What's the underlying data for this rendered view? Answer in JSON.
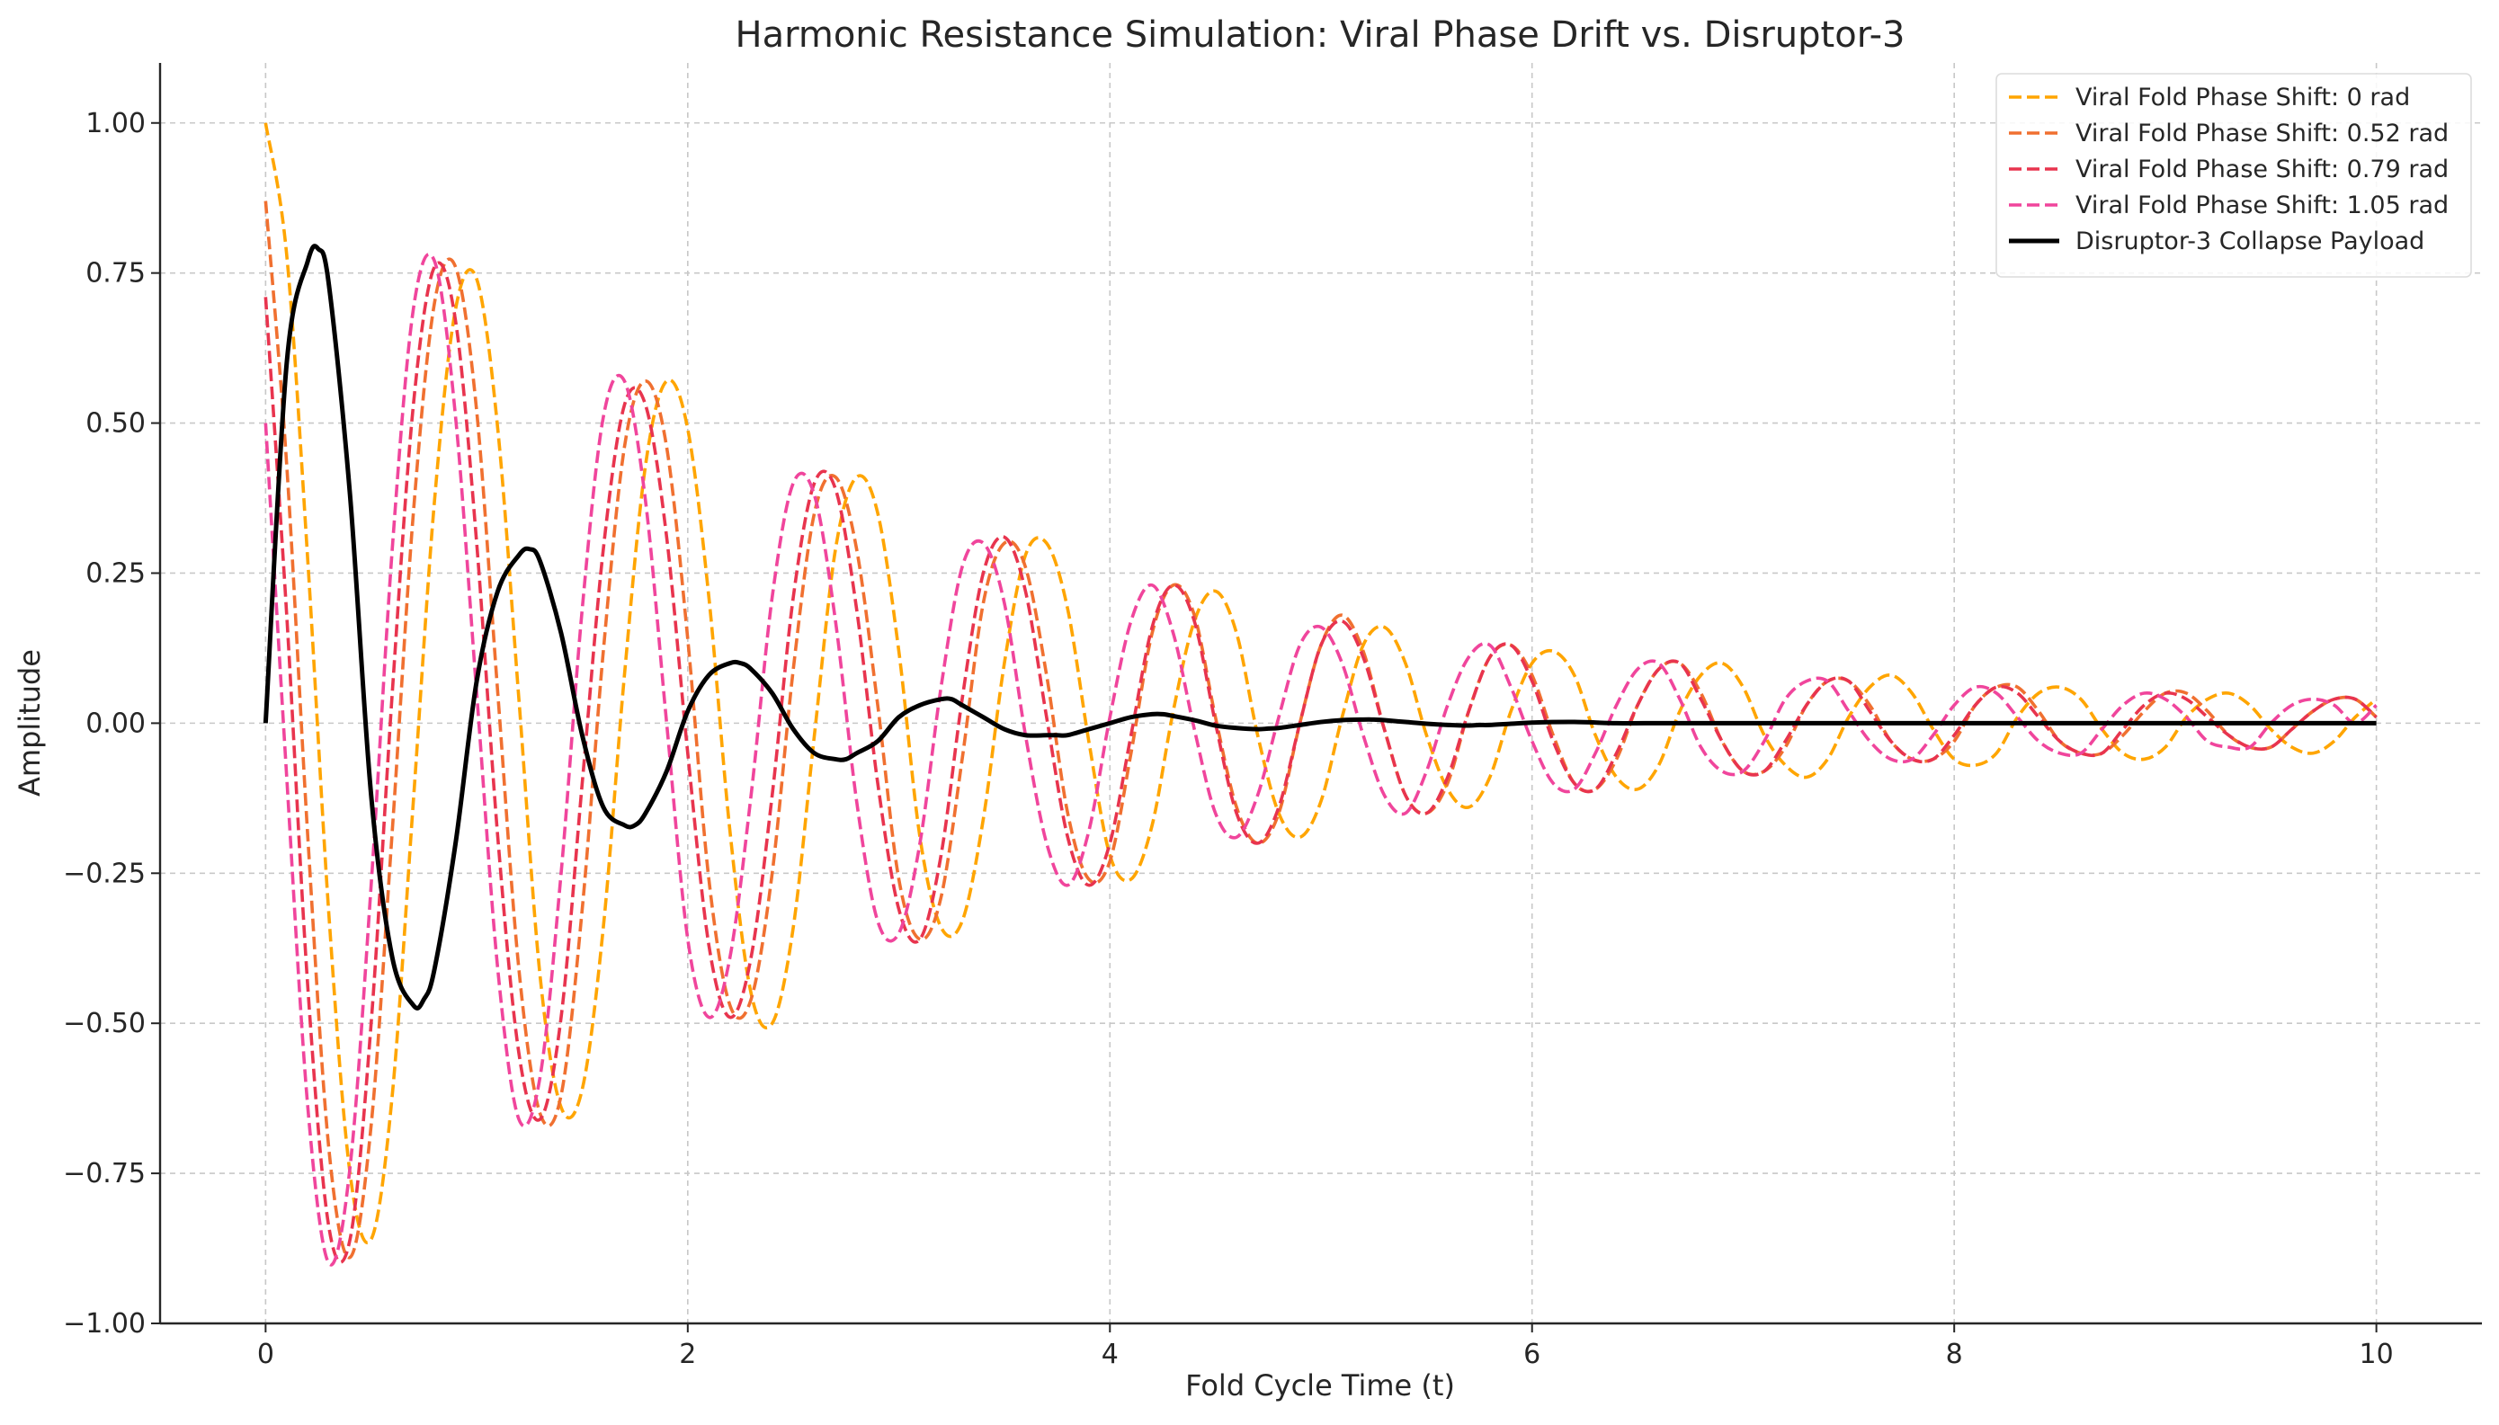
{
  "chart_data": {
    "type": "line",
    "title": "Harmonic Resistance Simulation: Viral Phase Drift vs. Disruptor-3",
    "xlabel": "Fold Cycle Time (t)",
    "ylabel": "Amplitude",
    "xlim": [
      -0.5,
      10.5
    ],
    "ylim": [
      -1.0,
      1.1
    ],
    "xticks": [
      0,
      2,
      4,
      6,
      8,
      10
    ],
    "xtick_labels": [
      "0",
      "2",
      "4",
      "6",
      "8",
      "10"
    ],
    "yticks": [
      -1.0,
      -0.75,
      -0.5,
      -0.25,
      0.0,
      0.25,
      0.5,
      0.75,
      1.0
    ],
    "ytick_labels": [
      "−1.00",
      "−0.75",
      "−0.50",
      "−0.25",
      "0.00",
      "0.25",
      "0.50",
      "0.75",
      "1.00"
    ],
    "grid": true,
    "legend_position": "top-right",
    "series": [
      {
        "name": "Viral Fold Phase Shift: 0 rad",
        "color": "#FFA500",
        "style": "dashed",
        "x": [
          0.0,
          0.1,
          0.2,
          0.3,
          0.4,
          0.5,
          0.6,
          0.7,
          0.8,
          0.9,
          1.0,
          1.1,
          1.2,
          1.3,
          1.4,
          1.5,
          1.6,
          1.7,
          1.8,
          1.9,
          2.0,
          2.1,
          2.2,
          2.3,
          2.4,
          2.5,
          2.6,
          2.7,
          2.8,
          2.9,
          3.0,
          3.1,
          3.2,
          3.3,
          3.4,
          3.5,
          3.6,
          3.7,
          3.8,
          3.9,
          4.0,
          4.1,
          4.2,
          4.3,
          4.4,
          4.5,
          4.6,
          4.7,
          4.8,
          4.9,
          5.0,
          5.1,
          5.2,
          5.3,
          5.4,
          5.5,
          5.6,
          5.7,
          5.8,
          5.9,
          6.0,
          6.1,
          6.2,
          6.3,
          6.4,
          6.5,
          6.6,
          6.7,
          6.8,
          6.9,
          7.0,
          7.1,
          7.2,
          7.3,
          7.4,
          7.5,
          7.6,
          7.7,
          7.8,
          7.9,
          8.0,
          8.1,
          8.2,
          8.3,
          8.4,
          8.5,
          8.6,
          8.7,
          8.8,
          8.9,
          9.0,
          9.1,
          9.2,
          9.3,
          9.4,
          9.5,
          9.6,
          9.7,
          9.8,
          9.9,
          10.0
        ],
        "y": [
          1.0,
          0.78,
          0.27,
          -0.32,
          -0.75,
          -0.86,
          -0.62,
          -0.13,
          0.37,
          0.69,
          0.74,
          0.49,
          0.04,
          -0.42,
          -0.64,
          -0.61,
          -0.34,
          0.08,
          0.43,
          0.57,
          0.49,
          0.21,
          -0.18,
          -0.45,
          -0.5,
          -0.34,
          -0.02,
          0.29,
          0.41,
          0.35,
          0.12,
          -0.19,
          -0.34,
          -0.33,
          -0.16,
          0.1,
          0.28,
          0.3,
          0.19,
          -0.03,
          -0.22,
          -0.26,
          -0.17,
          0.02,
          0.17,
          0.22,
          0.15,
          -0.02,
          -0.15,
          -0.19,
          -0.13,
          0.01,
          0.13,
          0.16,
          0.1,
          -0.02,
          -0.11,
          -0.14,
          -0.09,
          0.02,
          0.1,
          0.12,
          0.08,
          -0.02,
          -0.09,
          -0.11,
          -0.07,
          0.02,
          0.08,
          0.1,
          0.06,
          -0.02,
          -0.07,
          -0.09,
          -0.06,
          0.01,
          0.06,
          0.08,
          0.05,
          -0.01,
          -0.06,
          -0.07,
          -0.05,
          0.01,
          0.05,
          0.06,
          0.04,
          -0.01,
          -0.05,
          -0.06,
          -0.04,
          0.01,
          0.04,
          0.05,
          0.03,
          -0.01,
          -0.04,
          -0.05,
          -0.03,
          0.01,
          0.04
        ]
      },
      {
        "name": "Viral Fold Phase Shift: 0.52 rad",
        "color": "#F07030",
        "style": "dashed",
        "x": [
          0.0,
          0.1,
          0.2,
          0.3,
          0.4,
          0.5,
          0.6,
          0.7,
          0.8,
          0.9,
          1.0,
          1.1,
          1.2,
          1.3,
          1.4,
          1.5,
          1.6,
          1.7,
          1.8,
          1.9,
          2.0,
          2.1,
          2.2,
          2.3,
          2.4,
          2.5,
          2.6,
          2.7,
          2.8,
          2.9,
          3.0,
          3.1,
          3.2,
          3.3,
          3.4,
          3.5,
          3.6,
          3.7,
          3.8,
          3.9,
          4.0,
          4.1,
          4.2,
          4.3,
          4.4,
          4.5,
          4.6,
          4.7,
          4.8,
          4.9,
          5.0,
          5.1,
          5.2,
          5.3,
          5.4,
          5.5,
          5.6,
          5.7,
          5.8,
          5.9,
          6.0,
          6.1,
          6.2,
          6.3,
          6.4,
          6.5,
          6.6,
          6.7,
          6.8,
          6.9,
          7.0,
          7.1,
          7.2,
          7.3,
          7.4,
          7.5,
          7.6,
          7.7,
          7.8,
          7.9,
          8.0,
          8.1,
          8.2,
          8.3,
          8.4,
          8.5,
          8.6,
          8.7,
          8.8,
          8.9,
          9.0,
          9.1,
          9.2,
          9.3,
          9.4,
          9.5,
          9.6,
          9.7,
          9.8,
          9.9,
          10.0
        ],
        "y": [
          0.87,
          0.43,
          -0.19,
          -0.71,
          -0.89,
          -0.67,
          -0.18,
          0.35,
          0.7,
          0.76,
          0.52,
          0.05,
          -0.41,
          -0.65,
          -0.62,
          -0.31,
          0.12,
          0.46,
          0.57,
          0.46,
          0.14,
          -0.26,
          -0.47,
          -0.46,
          -0.25,
          0.09,
          0.35,
          0.41,
          0.29,
          0.03,
          -0.26,
          -0.36,
          -0.29,
          -0.06,
          0.2,
          0.3,
          0.26,
          0.08,
          -0.15,
          -0.26,
          -0.23,
          -0.05,
          0.15,
          0.23,
          0.18,
          0.01,
          -0.14,
          -0.2,
          -0.15,
          0.0,
          0.13,
          0.18,
          0.12,
          -0.01,
          -0.12,
          -0.15,
          -0.1,
          0.02,
          0.11,
          0.13,
          0.08,
          -0.02,
          -0.1,
          -0.11,
          -0.06,
          0.03,
          0.09,
          0.1,
          0.05,
          -0.03,
          -0.08,
          -0.08,
          -0.04,
          0.03,
          0.07,
          0.07,
          0.03,
          -0.03,
          -0.06,
          -0.06,
          -0.03,
          0.03,
          0.06,
          0.06,
          0.02,
          -0.03,
          -0.05,
          -0.05,
          -0.02,
          0.02,
          0.05,
          0.05,
          0.02,
          -0.02,
          -0.04,
          -0.04,
          -0.01,
          0.02,
          0.04,
          0.04,
          0.01
        ]
      },
      {
        "name": "Viral Fold Phase Shift: 0.79 rad",
        "color": "#E8344E",
        "style": "dashed",
        "x": [
          0.0,
          0.1,
          0.2,
          0.3,
          0.4,
          0.5,
          0.6,
          0.7,
          0.8,
          0.9,
          1.0,
          1.1,
          1.2,
          1.3,
          1.4,
          1.5,
          1.6,
          1.7,
          1.8,
          1.9,
          2.0,
          2.1,
          2.2,
          2.3,
          2.4,
          2.5,
          2.6,
          2.7,
          2.8,
          2.9,
          3.0,
          3.1,
          3.2,
          3.3,
          3.4,
          3.5,
          3.6,
          3.7,
          3.8,
          3.9,
          4.0,
          4.1,
          4.2,
          4.3,
          4.4,
          4.5,
          4.6,
          4.7,
          4.8,
          4.9,
          5.0,
          5.1,
          5.2,
          5.3,
          5.4,
          5.5,
          5.6,
          5.7,
          5.8,
          5.9,
          6.0,
          6.1,
          6.2,
          6.3,
          6.4,
          6.5,
          6.6,
          6.7,
          6.8,
          6.9,
          7.0,
          7.1,
          7.2,
          7.3,
          7.4,
          7.5,
          7.6,
          7.7,
          7.8,
          7.9,
          8.0,
          8.1,
          8.2,
          8.3,
          8.4,
          8.5,
          8.6,
          8.7,
          8.8,
          8.9,
          9.0,
          9.1,
          9.2,
          9.3,
          9.4,
          9.5,
          9.6,
          9.7,
          9.8,
          9.9,
          10.0
        ],
        "y": [
          0.71,
          0.18,
          -0.44,
          -0.84,
          -0.86,
          -0.5,
          0.05,
          0.53,
          0.76,
          0.67,
          0.3,
          -0.19,
          -0.55,
          -0.66,
          -0.49,
          -0.1,
          0.29,
          0.53,
          0.53,
          0.31,
          -0.05,
          -0.37,
          -0.49,
          -0.39,
          -0.12,
          0.21,
          0.4,
          0.39,
          0.19,
          -0.1,
          -0.31,
          -0.36,
          -0.22,
          0.04,
          0.25,
          0.31,
          0.22,
          0.01,
          -0.19,
          -0.27,
          -0.2,
          -0.02,
          0.16,
          0.23,
          0.17,
          0.0,
          -0.15,
          -0.2,
          -0.14,
          0.0,
          0.13,
          0.17,
          0.11,
          -0.01,
          -0.12,
          -0.15,
          -0.09,
          0.02,
          0.11,
          0.13,
          0.07,
          -0.03,
          -0.1,
          -0.11,
          -0.05,
          0.03,
          0.09,
          0.1,
          0.04,
          -0.03,
          -0.08,
          -0.08,
          -0.03,
          0.03,
          0.07,
          0.07,
          0.02,
          -0.03,
          -0.06,
          -0.06,
          -0.02,
          0.03,
          0.06,
          0.05,
          0.01,
          -0.03,
          -0.05,
          -0.05,
          -0.01,
          0.03,
          0.05,
          0.04,
          0.01,
          -0.02,
          -0.04,
          -0.04,
          -0.01,
          0.02,
          0.04,
          0.04,
          0.01
        ]
      },
      {
        "name": "Viral Fold Phase Shift: 1.05 rad",
        "color": "#F0459C",
        "style": "dashed",
        "x": [
          0.0,
          0.1,
          0.2,
          0.3,
          0.4,
          0.5,
          0.6,
          0.7,
          0.8,
          0.9,
          1.0,
          1.1,
          1.2,
          1.3,
          1.4,
          1.5,
          1.6,
          1.7,
          1.8,
          1.9,
          2.0,
          2.1,
          2.2,
          2.3,
          2.4,
          2.5,
          2.6,
          2.7,
          2.8,
          2.9,
          3.0,
          3.1,
          3.2,
          3.3,
          3.4,
          3.5,
          3.6,
          3.7,
          3.8,
          3.9,
          4.0,
          4.1,
          4.2,
          4.3,
          4.4,
          4.5,
          4.6,
          4.7,
          4.8,
          4.9,
          5.0,
          5.1,
          5.2,
          5.3,
          5.4,
          5.5,
          5.6,
          5.7,
          5.8,
          5.9,
          6.0,
          6.1,
          6.2,
          6.3,
          6.4,
          6.5,
          6.6,
          6.7,
          6.8,
          6.9,
          7.0,
          7.1,
          7.2,
          7.3,
          7.4,
          7.5,
          7.6,
          7.7,
          7.8,
          7.9,
          8.0,
          8.1,
          8.2,
          8.3,
          8.4,
          8.5,
          8.6,
          8.7,
          8.8,
          8.9,
          9.0,
          9.1,
          9.2,
          9.3,
          9.4,
          9.5,
          9.6,
          9.7,
          9.8,
          9.9,
          10.0
        ],
        "y": [
          0.5,
          -0.09,
          -0.64,
          -0.9,
          -0.74,
          -0.27,
          0.29,
          0.69,
          0.77,
          0.51,
          0.05,
          -0.41,
          -0.66,
          -0.59,
          -0.25,
          0.19,
          0.51,
          0.57,
          0.37,
          0.0,
          -0.36,
          -0.49,
          -0.39,
          -0.12,
          0.21,
          0.4,
          0.38,
          0.17,
          -0.13,
          -0.33,
          -0.35,
          -0.2,
          0.06,
          0.26,
          0.3,
          0.2,
          -0.02,
          -0.2,
          -0.27,
          -0.18,
          0.01,
          0.17,
          0.23,
          0.15,
          -0.01,
          -0.15,
          -0.19,
          -0.12,
          0.01,
          0.13,
          0.16,
          0.1,
          -0.02,
          -0.12,
          -0.15,
          -0.08,
          0.03,
          0.11,
          0.13,
          0.06,
          -0.03,
          -0.1,
          -0.11,
          -0.05,
          0.03,
          0.09,
          0.1,
          0.04,
          -0.04,
          -0.08,
          -0.08,
          -0.03,
          0.04,
          0.07,
          0.07,
          0.02,
          -0.03,
          -0.06,
          -0.06,
          -0.02,
          0.03,
          0.06,
          0.05,
          0.01,
          -0.03,
          -0.05,
          -0.05,
          -0.01,
          0.03,
          0.05,
          0.04,
          0.01,
          -0.03,
          -0.04,
          -0.04,
          0.0,
          0.03,
          0.04,
          0.03,
          0.0,
          0.03
        ]
      },
      {
        "name": "Disruptor-3 Collapse Payload",
        "color": "#000000",
        "style": "solid",
        "x": [
          0.0,
          0.1,
          0.2,
          0.25,
          0.3,
          0.4,
          0.5,
          0.6,
          0.7,
          0.75,
          0.8,
          0.9,
          1.0,
          1.1,
          1.2,
          1.25,
          1.3,
          1.4,
          1.5,
          1.6,
          1.7,
          1.75,
          1.8,
          1.9,
          2.0,
          2.1,
          2.2,
          2.25,
          2.3,
          2.4,
          2.5,
          2.6,
          2.7,
          2.75,
          2.8,
          2.9,
          3.0,
          3.1,
          3.2,
          3.25,
          3.3,
          3.4,
          3.5,
          3.6,
          3.7,
          3.75,
          3.8,
          3.9,
          4.0,
          4.1,
          4.2,
          4.25,
          4.3,
          4.4,
          4.5,
          4.6,
          4.7,
          4.75,
          4.8,
          4.9,
          5.0,
          5.1,
          5.2,
          5.25,
          5.3,
          5.4,
          5.5,
          5.6,
          5.7,
          5.75,
          5.8,
          5.9,
          6.0,
          6.2,
          6.4,
          6.6,
          6.8,
          7.0,
          7.5,
          8.0,
          8.5,
          9.0,
          9.5,
          10.0
        ],
        "y": [
          0.0,
          0.6,
          0.77,
          0.79,
          0.73,
          0.38,
          -0.12,
          -0.39,
          -0.47,
          -0.46,
          -0.41,
          -0.2,
          0.07,
          0.22,
          0.28,
          0.29,
          0.27,
          0.15,
          -0.02,
          -0.14,
          -0.17,
          -0.17,
          -0.15,
          -0.08,
          0.02,
          0.08,
          0.1,
          0.1,
          0.09,
          0.05,
          -0.01,
          -0.05,
          -0.06,
          -0.06,
          -0.05,
          -0.03,
          0.01,
          0.03,
          0.04,
          0.04,
          0.03,
          0.01,
          -0.01,
          -0.02,
          -0.02,
          -0.02,
          -0.02,
          -0.01,
          0.0,
          0.01,
          0.015,
          0.015,
          0.012,
          0.005,
          -0.004,
          -0.008,
          -0.01,
          -0.009,
          -0.008,
          -0.003,
          0.002,
          0.005,
          0.006,
          0.006,
          0.005,
          0.002,
          -0.001,
          -0.003,
          -0.004,
          -0.003,
          -0.003,
          -0.001,
          0.001,
          0.002,
          0.0,
          0.0,
          0.0,
          0.0,
          0.0,
          0.0,
          0.0,
          0.0,
          0.0,
          0.0
        ]
      }
    ]
  }
}
